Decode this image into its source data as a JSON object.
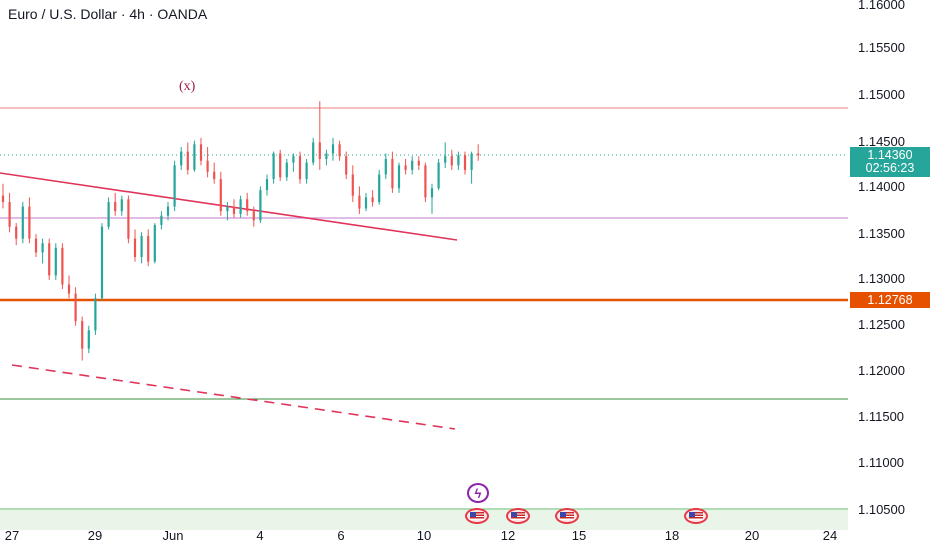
{
  "header": {
    "symbol_title": "Euro / U.S. Dollar · 4h · OANDA",
    "wave_label": "(x)"
  },
  "price_axis": {
    "labels": [
      "1.16000",
      "1.15500",
      "1.15000",
      "1.14500",
      "1.14000",
      "1.13500",
      "1.13000",
      "1.12500",
      "1.12000",
      "1.11500",
      "1.11000",
      "1.10500"
    ],
    "current_price": "1.14360",
    "countdown": "02:56:23",
    "level_tag": "1.12768"
  },
  "time_axis": {
    "labels": [
      "27",
      "29",
      "Jun",
      "4",
      "6",
      "10",
      "12",
      "15",
      "18",
      "20",
      "24"
    ]
  },
  "colors": {
    "up": "#26a69a",
    "down": "#ef5350",
    "resistance": "#ef9a9a",
    "support_orange": "#e65100",
    "purple_line": "#ce93d8",
    "green_line": "#388e3c",
    "trend_red": "#e0345a",
    "current_tag": "#26a69a"
  },
  "events": {
    "lightning_icon": "lightning-icon",
    "flag_icon": "us-flag-icon"
  },
  "chart_data": {
    "type": "candlestick",
    "instrument": "EUR/USD",
    "timeframe": "4h",
    "y_range": [
      1.1035,
      1.1603
    ],
    "horizontal_levels": [
      1.14865,
      1.1436,
      1.13665,
      1.12768,
      1.11695,
      1.10495
    ],
    "candles": [
      [
        1.1392,
        1.1405,
        1.1378,
        1.1385
      ],
      [
        1.1385,
        1.1395,
        1.1352,
        1.1358
      ],
      [
        1.1358,
        1.1362,
        1.1338,
        1.1345
      ],
      [
        1.1345,
        1.1385,
        1.134,
        1.138
      ],
      [
        1.138,
        1.139,
        1.134,
        1.1345
      ],
      [
        1.1345,
        1.135,
        1.1325,
        1.133
      ],
      [
        1.133,
        1.1345,
        1.1318,
        1.134
      ],
      [
        1.134,
        1.1345,
        1.13,
        1.1305
      ],
      [
        1.1305,
        1.134,
        1.13,
        1.1335
      ],
      [
        1.1335,
        1.134,
        1.129,
        1.1295
      ],
      [
        1.1295,
        1.1305,
        1.128,
        1.1285
      ],
      [
        1.1285,
        1.1292,
        1.125,
        1.1255
      ],
      [
        1.1255,
        1.126,
        1.1212,
        1.1225
      ],
      [
        1.1225,
        1.125,
        1.122,
        1.1245
      ],
      [
        1.1245,
        1.1285,
        1.124,
        1.128
      ],
      [
        1.128,
        1.1362,
        1.1278,
        1.1358
      ],
      [
        1.1358,
        1.139,
        1.1355,
        1.1385
      ],
      [
        1.1385,
        1.1395,
        1.137,
        1.1375
      ],
      [
        1.1375,
        1.1392,
        1.137,
        1.1388
      ],
      [
        1.1388,
        1.1392,
        1.134,
        1.1345
      ],
      [
        1.1345,
        1.1355,
        1.132,
        1.1325
      ],
      [
        1.1325,
        1.1352,
        1.1318,
        1.1348
      ],
      [
        1.1348,
        1.1355,
        1.1315,
        1.132
      ],
      [
        1.132,
        1.1362,
        1.1318,
        1.136
      ],
      [
        1.136,
        1.1375,
        1.1355,
        1.137
      ],
      [
        1.137,
        1.1385,
        1.1365,
        1.138
      ],
      [
        1.138,
        1.143,
        1.1375,
        1.1425
      ],
      [
        1.1425,
        1.1445,
        1.142,
        1.144
      ],
      [
        1.144,
        1.145,
        1.1415,
        1.142
      ],
      [
        1.142,
        1.1452,
        1.1418,
        1.1448
      ],
      [
        1.1448,
        1.1455,
        1.1425,
        1.143
      ],
      [
        1.143,
        1.1445,
        1.1412,
        1.1418
      ],
      [
        1.1418,
        1.1428,
        1.1405,
        1.141
      ],
      [
        1.141,
        1.1418,
        1.137,
        1.1375
      ],
      [
        1.1375,
        1.1385,
        1.1365,
        1.138
      ],
      [
        1.138,
        1.1388,
        1.1368,
        1.1372
      ],
      [
        1.1372,
        1.1392,
        1.1368,
        1.1388
      ],
      [
        1.1388,
        1.1395,
        1.137,
        1.1375
      ],
      [
        1.1375,
        1.138,
        1.1358,
        1.1365
      ],
      [
        1.1365,
        1.1402,
        1.1362,
        1.1398
      ],
      [
        1.1398,
        1.1415,
        1.1392,
        1.141
      ],
      [
        1.141,
        1.144,
        1.1405,
        1.1438
      ],
      [
        1.1438,
        1.1442,
        1.1408,
        1.1412
      ],
      [
        1.1412,
        1.1432,
        1.1408,
        1.1428
      ],
      [
        1.1428,
        1.1438,
        1.1418,
        1.1435
      ],
      [
        1.1435,
        1.144,
        1.1405,
        1.141
      ],
      [
        1.141,
        1.1432,
        1.1405,
        1.1428
      ],
      [
        1.1428,
        1.1455,
        1.1425,
        1.145
      ],
      [
        1.145,
        1.1495,
        1.142,
        1.1432
      ],
      [
        1.1432,
        1.1442,
        1.1425,
        1.1438
      ],
      [
        1.1438,
        1.1455,
        1.143,
        1.1448
      ],
      [
        1.1448,
        1.1452,
        1.143,
        1.1435
      ],
      [
        1.1435,
        1.144,
        1.141,
        1.1415
      ],
      [
        1.1415,
        1.1425,
        1.1385,
        1.1392
      ],
      [
        1.1392,
        1.1402,
        1.1372,
        1.1378
      ],
      [
        1.1378,
        1.1395,
        1.1375,
        1.139
      ],
      [
        1.139,
        1.1398,
        1.138,
        1.1385
      ],
      [
        1.1385,
        1.142,
        1.1382,
        1.1415
      ],
      [
        1.1415,
        1.1438,
        1.141,
        1.1432
      ],
      [
        1.1432,
        1.144,
        1.1395,
        1.14
      ],
      [
        1.14,
        1.1428,
        1.1395,
        1.1425
      ],
      [
        1.1425,
        1.1432,
        1.1415,
        1.142
      ],
      [
        1.142,
        1.1435,
        1.1415,
        1.143
      ],
      [
        1.143,
        1.1435,
        1.142,
        1.1425
      ],
      [
        1.1425,
        1.1428,
        1.1385,
        1.139
      ],
      [
        1.139,
        1.1405,
        1.1372,
        1.14
      ],
      [
        1.14,
        1.1432,
        1.1398,
        1.1428
      ],
      [
        1.1428,
        1.145,
        1.1422,
        1.1435
      ],
      [
        1.1435,
        1.1442,
        1.142,
        1.1425
      ],
      [
        1.1425,
        1.144,
        1.142,
        1.1436
      ],
      [
        1.1436,
        1.144,
        1.1415,
        1.142
      ],
      [
        1.142,
        1.144,
        1.1405,
        1.1438
      ],
      [
        1.1438,
        1.1448,
        1.143,
        1.1436
      ]
    ]
  }
}
